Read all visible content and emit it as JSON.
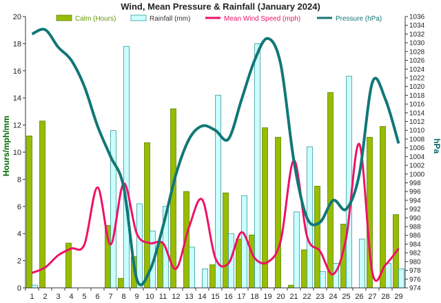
{
  "chart_data": {
    "type": "bar",
    "title": "Wind, Mean Pressure & Rainfall (January 2024)",
    "categories": [
      "1",
      "2",
      "3",
      "4",
      "5",
      "6",
      "7",
      "8",
      "9",
      "10",
      "11",
      "12",
      "13",
      "14",
      "15",
      "16",
      "17",
      "18",
      "19",
      "20",
      "21",
      "22",
      "23",
      "24",
      "25",
      "26",
      "27",
      "28",
      "29"
    ],
    "ylabel_left": "Hours/mph/mm",
    "ylabel_right": "hPa",
    "ylim_left": [
      0,
      20
    ],
    "ylim_right": [
      974,
      1036
    ],
    "yticks_left": [
      "0",
      "2",
      "4",
      "6",
      "8",
      "10",
      "12",
      "14",
      "16",
      "18",
      "20"
    ],
    "yticks_right": [
      "974",
      "976",
      "978",
      "980",
      "982",
      "984",
      "986",
      "988",
      "990",
      "992",
      "994",
      "996",
      "998",
      "1000",
      "1002",
      "1004",
      "1006",
      "1008",
      "1010",
      "1012",
      "1014",
      "1016",
      "1018",
      "1020",
      "1022",
      "1024",
      "1026",
      "1028",
      "1030",
      "1032",
      "1034",
      "1036"
    ],
    "grid": false,
    "legend_position": "top",
    "series": [
      {
        "name": "Calm (Hours)",
        "type": "bar",
        "axis": "left",
        "color": "#99bb00",
        "values": [
          11.2,
          12.3,
          0,
          3.3,
          0,
          0,
          4.6,
          0.7,
          2.3,
          10.7,
          3.3,
          13.2,
          7.1,
          0,
          1.7,
          7.0,
          3.6,
          3.9,
          11.8,
          11.1,
          0.2,
          2.8,
          7.5,
          14.4,
          4.7,
          0,
          11.1,
          11.9,
          5.4
        ]
      },
      {
        "name": "Rainfall (mm)",
        "type": "bar",
        "axis": "left",
        "color": "#ccffff",
        "values": [
          0.2,
          0,
          0,
          0,
          0,
          0,
          11.6,
          17.8,
          6.2,
          4.2,
          6.0,
          0,
          3.0,
          1.4,
          14.2,
          4.0,
          6.8,
          18.0,
          0,
          0,
          5.6,
          10.4,
          1.2,
          1.8,
          15.6,
          3.6,
          0,
          1.8,
          1.4
        ]
      },
      {
        "name": "Mean Wind Speed (mph)",
        "type": "line",
        "axis": "left",
        "color": "#ee1166",
        "values": [
          1.1,
          1.5,
          2.4,
          2.9,
          3.2,
          7.4,
          3.2,
          7.7,
          4.0,
          3.3,
          3.3,
          1.4,
          4.5,
          6.5,
          2.2,
          1.8,
          4.1,
          2.2,
          1.9,
          3.5,
          9.4,
          3.8,
          2.7,
          1.0,
          3.7,
          10.6,
          1.1,
          1.7,
          2.9
        ]
      },
      {
        "name": "Pressure (hPa)",
        "type": "line",
        "axis": "right",
        "color": "#117777",
        "values": [
          1032,
          1033,
          1029,
          1026,
          1020,
          1011,
          1004,
          997,
          976,
          978,
          988,
          1000,
          1008,
          1011,
          1010,
          1008,
          1017,
          1026,
          1031,
          1025,
          1003,
          990,
          989,
          994,
          992,
          1000,
          1021,
          1017,
          1007
        ]
      }
    ]
  }
}
